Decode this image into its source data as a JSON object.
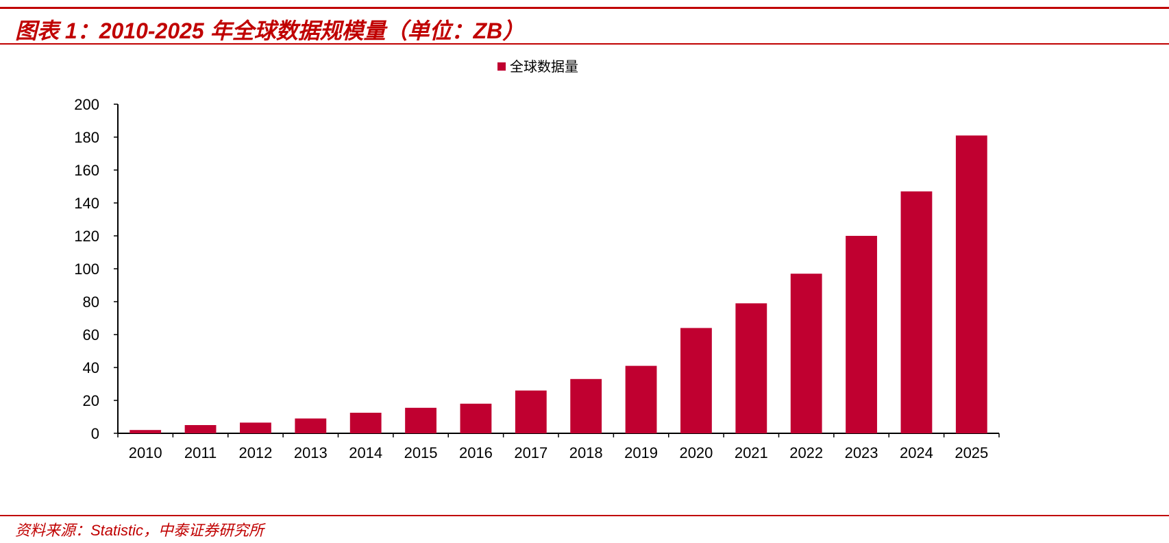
{
  "header": {
    "figure_title": "图表 1：2010-2025 年全球数据规模量（单位：ZB）"
  },
  "footer": {
    "source": "资料来源：Statistic，中泰证券研究所"
  },
  "chart_data": {
    "type": "bar",
    "title": "",
    "xlabel": "",
    "ylabel": "",
    "categories": [
      "2010",
      "2011",
      "2012",
      "2013",
      "2014",
      "2015",
      "2016",
      "2017",
      "2018",
      "2019",
      "2020",
      "2021",
      "2022",
      "2023",
      "2024",
      "2025"
    ],
    "series": [
      {
        "name": "全球数据量",
        "color": "#c00030",
        "values": [
          2,
          5,
          6.5,
          9,
          12.5,
          15.5,
          18,
          26,
          33,
          41,
          64,
          79,
          97,
          120,
          147,
          181
        ]
      }
    ],
    "ylim": [
      0,
      200
    ],
    "yticks": [
      0,
      20,
      40,
      60,
      80,
      100,
      120,
      140,
      160,
      180,
      200
    ],
    "grid": false,
    "legend_position": "top-center"
  }
}
